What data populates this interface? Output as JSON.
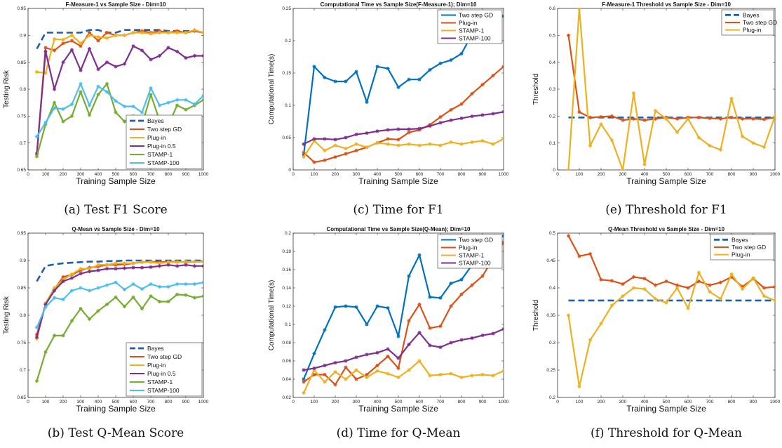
{
  "colors": {
    "Bayes": "#1f5fa8",
    "Two step GD": "#0072BD",
    "Plug-in (time/threshold)": "#D95319",
    "STAMP-1 (time)": "#EDB120",
    "STAMP-100 (time)": "#7E2F8E",
    "Two step GD (risk)": "#D95319",
    "Plug-in (risk)": "#EDB120",
    "Plug-in 0.5": "#7E2F8E",
    "STAMP-1 (risk)": "#77AC30",
    "STAMP-100 (risk)": "#4DBEEE"
  },
  "chart_data": [
    {
      "id": "a",
      "type": "line",
      "caption": "(a) Test F1 Score",
      "title": "F-Measure-1 vs Sample Size - Dim=10",
      "xlabel": "Training Sample Size",
      "ylabel": "Testing Risk",
      "xlim": [
        0,
        1000
      ],
      "ylim": [
        0.65,
        0.95
      ],
      "xticks": [
        0,
        100,
        200,
        300,
        400,
        500,
        600,
        700,
        800,
        900,
        1000
      ],
      "yticks": [
        0.65,
        0.7,
        0.75,
        0.8,
        0.85,
        0.9,
        0.95
      ],
      "legend_position": "bottom-right",
      "x": [
        50,
        100,
        150,
        200,
        250,
        300,
        350,
        400,
        450,
        500,
        550,
        600,
        650,
        700,
        750,
        800,
        850,
        900,
        950,
        1000
      ],
      "series": [
        {
          "name": "Bayes",
          "style": "dashed",
          "color": "#1f5fa8",
          "values": [
            0.875,
            0.905,
            0.905,
            0.905,
            0.905,
            0.905,
            0.91,
            0.91,
            0.905,
            0.905,
            0.91,
            0.91,
            0.91,
            0.91,
            0.91,
            0.908,
            0.908,
            0.908,
            0.908,
            0.905
          ]
        },
        {
          "name": "Two step GD",
          "color": "#D95319",
          "values": [
            0.68,
            0.877,
            0.872,
            0.885,
            0.89,
            0.88,
            0.905,
            0.89,
            0.905,
            0.9,
            0.9,
            0.905,
            0.908,
            0.905,
            0.908,
            0.905,
            0.908,
            0.905,
            0.908,
            0.905
          ]
        },
        {
          "name": "Plug-in",
          "color": "#EDB120",
          "values": [
            0.832,
            0.83,
            0.893,
            0.892,
            0.9,
            0.885,
            0.9,
            0.897,
            0.895,
            0.9,
            0.9,
            0.905,
            0.905,
            0.903,
            0.905,
            0.905,
            0.905,
            0.905,
            0.91,
            0.905
          ]
        },
        {
          "name": "Plug-in 0.5",
          "color": "#7E2F8E",
          "values": [
            0.68,
            0.87,
            0.8,
            0.85,
            0.873,
            0.835,
            0.875,
            0.837,
            0.85,
            0.842,
            0.847,
            0.88,
            0.872,
            0.855,
            0.862,
            0.877,
            0.87,
            0.858,
            0.862,
            0.862
          ]
        },
        {
          "name": "STAMP-1",
          "color": "#77AC30",
          "values": [
            0.675,
            0.735,
            0.775,
            0.74,
            0.75,
            0.795,
            0.752,
            0.79,
            0.81,
            0.757,
            0.74,
            0.75,
            0.733,
            0.79,
            0.742,
            0.733,
            0.77,
            0.762,
            0.77,
            0.78
          ]
        },
        {
          "name": "STAMP-100",
          "color": "#4DBEEE",
          "values": [
            0.712,
            0.738,
            0.765,
            0.763,
            0.772,
            0.81,
            0.77,
            0.805,
            0.795,
            0.778,
            0.768,
            0.768,
            0.757,
            0.802,
            0.77,
            0.775,
            0.78,
            0.78,
            0.772,
            0.788
          ]
        }
      ]
    },
    {
      "id": "c",
      "type": "line",
      "caption": "(c) Time for F1",
      "title": "Computational Time vs Sample Size(F-Measure-1); Dim=10",
      "xlabel": "Training Sample Size",
      "ylabel": "Computational Time(s)",
      "xlim": [
        0,
        1000
      ],
      "ylim": [
        0,
        0.25
      ],
      "xticks": [
        0,
        100,
        200,
        300,
        400,
        500,
        600,
        700,
        800,
        900,
        1000
      ],
      "yticks": [
        0,
        0.05,
        0.1,
        0.15,
        0.2,
        0.25
      ],
      "legend_position": "top-right",
      "x": [
        50,
        100,
        150,
        200,
        250,
        300,
        350,
        400,
        450,
        500,
        550,
        600,
        650,
        700,
        750,
        800,
        850,
        900,
        950,
        1000
      ],
      "series": [
        {
          "name": "Two step GD",
          "color": "#0072BD",
          "values": [
            0.023,
            0.16,
            0.143,
            0.137,
            0.137,
            0.152,
            0.105,
            0.16,
            0.157,
            0.128,
            0.14,
            0.14,
            0.155,
            0.165,
            0.17,
            0.18,
            0.21,
            0.238,
            0.238,
            0.238
          ]
        },
        {
          "name": "Plug-in",
          "color": "#D95319",
          "values": [
            0.027,
            0.012,
            0.015,
            0.02,
            0.025,
            0.03,
            0.035,
            0.042,
            0.048,
            0.047,
            0.058,
            0.062,
            0.07,
            0.082,
            0.093,
            0.102,
            0.118,
            0.132,
            0.146,
            0.16
          ]
        },
        {
          "name": "STAMP-1",
          "color": "#EDB120",
          "values": [
            0.02,
            0.045,
            0.03,
            0.038,
            0.033,
            0.04,
            0.035,
            0.042,
            0.04,
            0.038,
            0.04,
            0.038,
            0.04,
            0.038,
            0.043,
            0.04,
            0.043,
            0.045,
            0.04,
            0.048
          ]
        },
        {
          "name": "STAMP-100",
          "color": "#7E2F8E",
          "values": [
            0.04,
            0.048,
            0.048,
            0.047,
            0.05,
            0.055,
            0.057,
            0.06,
            0.062,
            0.063,
            0.063,
            0.064,
            0.068,
            0.073,
            0.077,
            0.08,
            0.083,
            0.085,
            0.087,
            0.09
          ]
        }
      ]
    },
    {
      "id": "e",
      "type": "line",
      "caption": "(e) Threshold for F1",
      "title": "F-Measure-1 Threshold vs Sample Size - Dim=10",
      "xlabel": "Training Sample Size",
      "ylabel": "Threshold",
      "xlim": [
        0,
        1000
      ],
      "ylim": [
        0,
        0.6
      ],
      "xticks": [
        0,
        100,
        200,
        300,
        400,
        500,
        600,
        700,
        800,
        900,
        1000
      ],
      "yticks": [
        0,
        0.1,
        0.2,
        0.3,
        0.4,
        0.5,
        0.6
      ],
      "legend_position": "top-right",
      "x": [
        50,
        100,
        150,
        200,
        250,
        300,
        350,
        400,
        450,
        500,
        550,
        600,
        650,
        700,
        750,
        800,
        850,
        900,
        950,
        1000
      ],
      "series": [
        {
          "name": "Bayes",
          "style": "dashed",
          "color": "#1f5fa8",
          "values": [
            0.195,
            0.195,
            0.195,
            0.195,
            0.195,
            0.195,
            0.195,
            0.195,
            0.195,
            0.195,
            0.195,
            0.195,
            0.195,
            0.195,
            0.195,
            0.195,
            0.195,
            0.195,
            0.195,
            0.195
          ]
        },
        {
          "name": "Two step GD",
          "color": "#D95319",
          "values": [
            0.5,
            0.215,
            0.195,
            0.197,
            0.2,
            0.185,
            0.19,
            0.185,
            0.19,
            0.195,
            0.19,
            0.195,
            0.195,
            0.192,
            0.19,
            0.195,
            0.19,
            0.19,
            0.188,
            0.195
          ]
        },
        {
          "name": "Plug-in",
          "color": "#EDB120",
          "values": [
            0.0,
            0.6,
            0.09,
            0.17,
            0.11,
            0.0,
            0.285,
            0.02,
            0.22,
            0.19,
            0.14,
            0.19,
            0.12,
            0.09,
            0.075,
            0.265,
            0.125,
            0.1,
            0.085,
            0.2
          ]
        }
      ]
    },
    {
      "id": "b",
      "type": "line",
      "caption": "(b) Test Q-Mean Score",
      "title": "Q-Mean vs Sample Size - Dim=10",
      "xlabel": "Training Sample Size",
      "ylabel": "Testing Risk",
      "xlim": [
        0,
        1000
      ],
      "ylim": [
        0.65,
        0.95
      ],
      "xticks": [
        0,
        100,
        200,
        300,
        400,
        500,
        600,
        700,
        800,
        900,
        1000
      ],
      "yticks": [
        0.65,
        0.7,
        0.75,
        0.8,
        0.85,
        0.9,
        0.95
      ],
      "legend_position": "bottom-right",
      "x": [
        50,
        100,
        150,
        200,
        250,
        300,
        350,
        400,
        450,
        500,
        550,
        600,
        650,
        700,
        750,
        800,
        850,
        900,
        950,
        1000
      ],
      "series": [
        {
          "name": "Bayes",
          "style": "dashed",
          "color": "#1f5fa8",
          "values": [
            0.862,
            0.89,
            0.893,
            0.895,
            0.896,
            0.897,
            0.898,
            0.898,
            0.899,
            0.899,
            0.9,
            0.9,
            0.9,
            0.9,
            0.9,
            0.9,
            0.9,
            0.9,
            0.9,
            0.9
          ]
        },
        {
          "name": "Two step GD",
          "color": "#D95319",
          "values": [
            0.765,
            0.82,
            0.848,
            0.87,
            0.874,
            0.882,
            0.887,
            0.889,
            0.892,
            0.892,
            0.893,
            0.895,
            0.897,
            0.898,
            0.897,
            0.898,
            0.898,
            0.897,
            0.898,
            0.898
          ]
        },
        {
          "name": "Plug-in",
          "color": "#EDB120",
          "values": [
            0.757,
            0.822,
            0.85,
            0.865,
            0.875,
            0.885,
            0.885,
            0.892,
            0.892,
            0.895,
            0.895,
            0.895,
            0.897,
            0.897,
            0.895,
            0.897,
            0.897,
            0.898,
            0.898,
            0.898
          ]
        },
        {
          "name": "Plug-in 0.5",
          "color": "#7E2F8E",
          "values": [
            0.76,
            0.82,
            0.845,
            0.862,
            0.868,
            0.876,
            0.88,
            0.882,
            0.885,
            0.885,
            0.886,
            0.887,
            0.887,
            0.888,
            0.89,
            0.892,
            0.89,
            0.892,
            0.89,
            0.89
          ]
        },
        {
          "name": "STAMP-1",
          "color": "#77AC30",
          "values": [
            0.68,
            0.733,
            0.763,
            0.763,
            0.79,
            0.812,
            0.793,
            0.808,
            0.82,
            0.833,
            0.816,
            0.833,
            0.812,
            0.835,
            0.825,
            0.825,
            0.838,
            0.837,
            0.832,
            0.835
          ]
        },
        {
          "name": "STAMP-100",
          "color": "#4DBEEE",
          "values": [
            0.778,
            0.815,
            0.832,
            0.829,
            0.845,
            0.85,
            0.845,
            0.85,
            0.855,
            0.86,
            0.847,
            0.857,
            0.848,
            0.857,
            0.852,
            0.852,
            0.857,
            0.857,
            0.857,
            0.86
          ]
        }
      ]
    },
    {
      "id": "d",
      "type": "line",
      "caption": "(d) Time for Q-Mean",
      "title": "Computational Time vs Sample Size(Q-Mean); Dim=10",
      "xlabel": "Training Sample Size",
      "ylabel": "Computational Time(s)",
      "xlim": [
        0,
        1000
      ],
      "ylim": [
        0.02,
        0.2
      ],
      "xticks": [
        0,
        100,
        200,
        300,
        400,
        500,
        600,
        700,
        800,
        900,
        1000
      ],
      "yticks": [
        0.02,
        0.04,
        0.06,
        0.08,
        0.1,
        0.12,
        0.14,
        0.16,
        0.18,
        0.2
      ],
      "legend_position": "top-right",
      "x": [
        50,
        100,
        150,
        200,
        250,
        300,
        350,
        400,
        450,
        500,
        550,
        600,
        650,
        700,
        750,
        800,
        850,
        900,
        950,
        1000
      ],
      "series": [
        {
          "name": "Two step GD",
          "color": "#0072BD",
          "values": [
            0.04,
            0.068,
            0.094,
            0.119,
            0.12,
            0.119,
            0.1,
            0.12,
            0.118,
            0.087,
            0.153,
            0.176,
            0.13,
            0.129,
            0.145,
            0.149,
            0.165,
            0.183,
            0.19,
            0.197
          ]
        },
        {
          "name": "Plug-in",
          "color": "#D95319",
          "values": [
            0.037,
            0.045,
            0.045,
            0.034,
            0.053,
            0.04,
            0.045,
            0.055,
            0.065,
            0.052,
            0.104,
            0.122,
            0.096,
            0.098,
            0.12,
            0.133,
            0.143,
            0.153,
            0.172,
            0.19
          ]
        },
        {
          "name": "STAMP-1",
          "color": "#EDB120",
          "values": [
            0.025,
            0.05,
            0.037,
            0.048,
            0.04,
            0.05,
            0.042,
            0.049,
            0.046,
            0.042,
            0.05,
            0.06,
            0.044,
            0.045,
            0.046,
            0.042,
            0.044,
            0.045,
            0.044,
            0.049
          ]
        },
        {
          "name": "STAMP-100",
          "color": "#7E2F8E",
          "values": [
            0.05,
            0.052,
            0.055,
            0.058,
            0.06,
            0.064,
            0.067,
            0.069,
            0.073,
            0.063,
            0.078,
            0.091,
            0.077,
            0.075,
            0.08,
            0.083,
            0.085,
            0.088,
            0.09,
            0.095
          ]
        }
      ]
    },
    {
      "id": "f",
      "type": "line",
      "caption": "(f) Threshold for Q-Mean",
      "title": "Q-Mean Threshold vs Sample Size - Dim=10",
      "xlabel": "Training Sample Size",
      "ylabel": "Threshold",
      "xlim": [
        0,
        1000
      ],
      "ylim": [
        0.2,
        0.5
      ],
      "xticks": [
        0,
        100,
        200,
        300,
        400,
        500,
        600,
        700,
        800,
        900,
        1000
      ],
      "yticks": [
        0.2,
        0.25,
        0.3,
        0.35,
        0.4,
        0.45,
        0.5
      ],
      "legend_position": "top-right",
      "x": [
        50,
        100,
        150,
        200,
        250,
        300,
        350,
        400,
        450,
        500,
        550,
        600,
        650,
        700,
        750,
        800,
        850,
        900,
        950,
        1000
      ],
      "series": [
        {
          "name": "Bayes",
          "style": "dashed",
          "color": "#1f5fa8",
          "values": [
            0.377,
            0.377,
            0.377,
            0.377,
            0.377,
            0.377,
            0.377,
            0.377,
            0.377,
            0.377,
            0.377,
            0.377,
            0.377,
            0.377,
            0.377,
            0.377,
            0.377,
            0.377,
            0.377,
            0.377
          ]
        },
        {
          "name": "Two step GD",
          "color": "#D95319",
          "values": [
            0.495,
            0.458,
            0.462,
            0.415,
            0.413,
            0.407,
            0.42,
            0.417,
            0.405,
            0.412,
            0.405,
            0.4,
            0.412,
            0.405,
            0.41,
            0.42,
            0.402,
            0.417,
            0.4,
            0.402
          ]
        },
        {
          "name": "Plug-in",
          "color": "#EDB120",
          "values": [
            0.35,
            0.22,
            0.305,
            0.335,
            0.368,
            0.385,
            0.4,
            0.398,
            0.38,
            0.373,
            0.4,
            0.363,
            0.428,
            0.393,
            0.38,
            0.425,
            0.398,
            0.418,
            0.385,
            0.377
          ]
        }
      ]
    }
  ]
}
